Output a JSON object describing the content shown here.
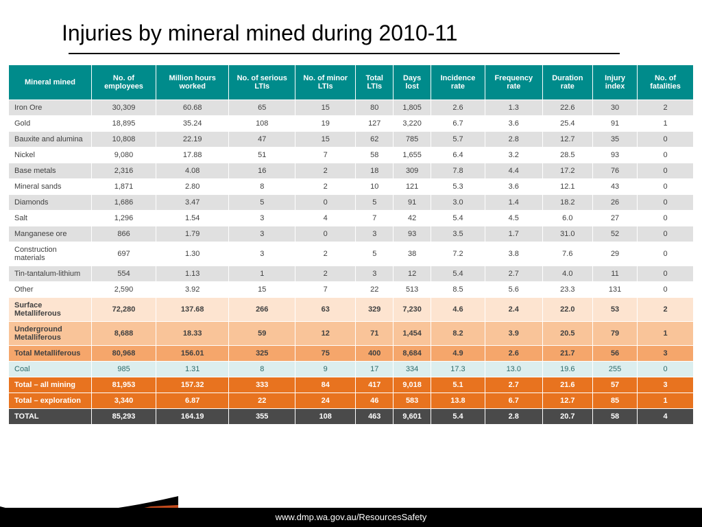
{
  "title": "Injuries by mineral mined during 2010-11",
  "footer": "www.dmp.wa.gov.au/ResourcesSafety",
  "colors": {
    "header_bg": "#008b8b",
    "header_text": "#ffffff",
    "row_odd": "#e0e0e0",
    "row_even": "#ffffff",
    "subtotal1": "#fde4d0",
    "subtotal2": "#f9c499",
    "subtotal3": "#f5a66b",
    "coal_bg": "#dceeee",
    "total_orange": "#e8731f",
    "total_final": "#4a4a4a",
    "swoosh_outer": "#000000",
    "swoosh_inner": "#c0491c"
  },
  "typography": {
    "title_fontsize": 32,
    "header_fontsize": 11,
    "cell_fontsize": 11,
    "footer_fontsize": 13
  },
  "table": {
    "columns": [
      "Mineral mined",
      "No. of employees",
      "Million hours worked",
      "No. of serious LTIs",
      "No. of minor LTIs",
      "Total LTIs",
      "Days lost",
      "Incidence rate",
      "Frequency rate",
      "Duration rate",
      "Injury index",
      "No. of fatalities"
    ],
    "rows": [
      {
        "style": "odd",
        "cells": [
          "Iron Ore",
          "30,309",
          "60.68",
          "65",
          "15",
          "80",
          "1,805",
          "2.6",
          "1.3",
          "22.6",
          "30",
          "2"
        ]
      },
      {
        "style": "even",
        "cells": [
          "Gold",
          "18,895",
          "35.24",
          "108",
          "19",
          "127",
          "3,220",
          "6.7",
          "3.6",
          "25.4",
          "91",
          "1"
        ]
      },
      {
        "style": "odd",
        "cells": [
          "Bauxite and alumina",
          "10,808",
          "22.19",
          "47",
          "15",
          "62",
          "785",
          "5.7",
          "2.8",
          "12.7",
          "35",
          "0"
        ]
      },
      {
        "style": "even",
        "cells": [
          "Nickel",
          "9,080",
          "17.88",
          "51",
          "7",
          "58",
          "1,655",
          "6.4",
          "3.2",
          "28.5",
          "93",
          "0"
        ]
      },
      {
        "style": "odd",
        "cells": [
          "Base metals",
          "2,316",
          "4.08",
          "16",
          "2",
          "18",
          "309",
          "7.8",
          "4.4",
          "17.2",
          "76",
          "0"
        ]
      },
      {
        "style": "even",
        "cells": [
          "Mineral sands",
          "1,871",
          "2.80",
          "8",
          "2",
          "10",
          "121",
          "5.3",
          "3.6",
          "12.1",
          "43",
          "0"
        ]
      },
      {
        "style": "odd",
        "cells": [
          "Diamonds",
          "1,686",
          "3.47",
          "5",
          "0",
          "5",
          "91",
          "3.0",
          "1.4",
          "18.2",
          "26",
          "0"
        ]
      },
      {
        "style": "even",
        "cells": [
          "Salt",
          "1,296",
          "1.54",
          "3",
          "4",
          "7",
          "42",
          "5.4",
          "4.5",
          "6.0",
          "27",
          "0"
        ]
      },
      {
        "style": "odd",
        "cells": [
          "Manganese ore",
          "866",
          "1.79",
          "3",
          "0",
          "3",
          "93",
          "3.5",
          "1.7",
          "31.0",
          "52",
          "0"
        ]
      },
      {
        "style": "even",
        "cells": [
          "Construction materials",
          "697",
          "1.30",
          "3",
          "2",
          "5",
          "38",
          "7.2",
          "3.8",
          "7.6",
          "29",
          "0"
        ]
      },
      {
        "style": "odd",
        "cells": [
          "Tin-tantalum-lithium",
          "554",
          "1.13",
          "1",
          "2",
          "3",
          "12",
          "5.4",
          "2.7",
          "4.0",
          "11",
          "0"
        ]
      },
      {
        "style": "even",
        "cells": [
          "Other",
          "2,590",
          "3.92",
          "15",
          "7",
          "22",
          "513",
          "8.5",
          "5.6",
          "23.3",
          "131",
          "0"
        ]
      },
      {
        "style": "sub1",
        "cells": [
          "Surface Metalliferous",
          "72,280",
          "137.68",
          "266",
          "63",
          "329",
          "7,230",
          "4.6",
          "2.4",
          "22.0",
          "53",
          "2"
        ]
      },
      {
        "style": "sub2",
        "cells": [
          "Underground Metalliferous",
          "8,688",
          "18.33",
          "59",
          "12",
          "71",
          "1,454",
          "8.2",
          "3.9",
          "20.5",
          "79",
          "1"
        ]
      },
      {
        "style": "sub3",
        "cells": [
          "Total Metalliferous",
          "80,968",
          "156.01",
          "325",
          "75",
          "400",
          "8,684",
          "4.9",
          "2.6",
          "21.7",
          "56",
          "3"
        ]
      },
      {
        "style": "coal",
        "cells": [
          "Coal",
          "985",
          "1.31",
          "8",
          "9",
          "17",
          "334",
          "17.3",
          "13.0",
          "19.6",
          "255",
          "0"
        ]
      },
      {
        "style": "tot-orange",
        "cells": [
          "Total – all mining",
          "81,953",
          "157.32",
          "333",
          "84",
          "417",
          "9,018",
          "5.1",
          "2.7",
          "21.6",
          "57",
          "3"
        ]
      },
      {
        "style": "tot-orange",
        "cells": [
          "Total – exploration",
          "3,340",
          "6.87",
          "22",
          "24",
          "46",
          "583",
          "13.8",
          "6.7",
          "12.7",
          "85",
          "1"
        ]
      },
      {
        "style": "tot-final",
        "cells": [
          "TOTAL",
          "85,293",
          "164.19",
          "355",
          "108",
          "463",
          "9,601",
          "5.4",
          "2.8",
          "20.7",
          "58",
          "4"
        ]
      }
    ]
  }
}
